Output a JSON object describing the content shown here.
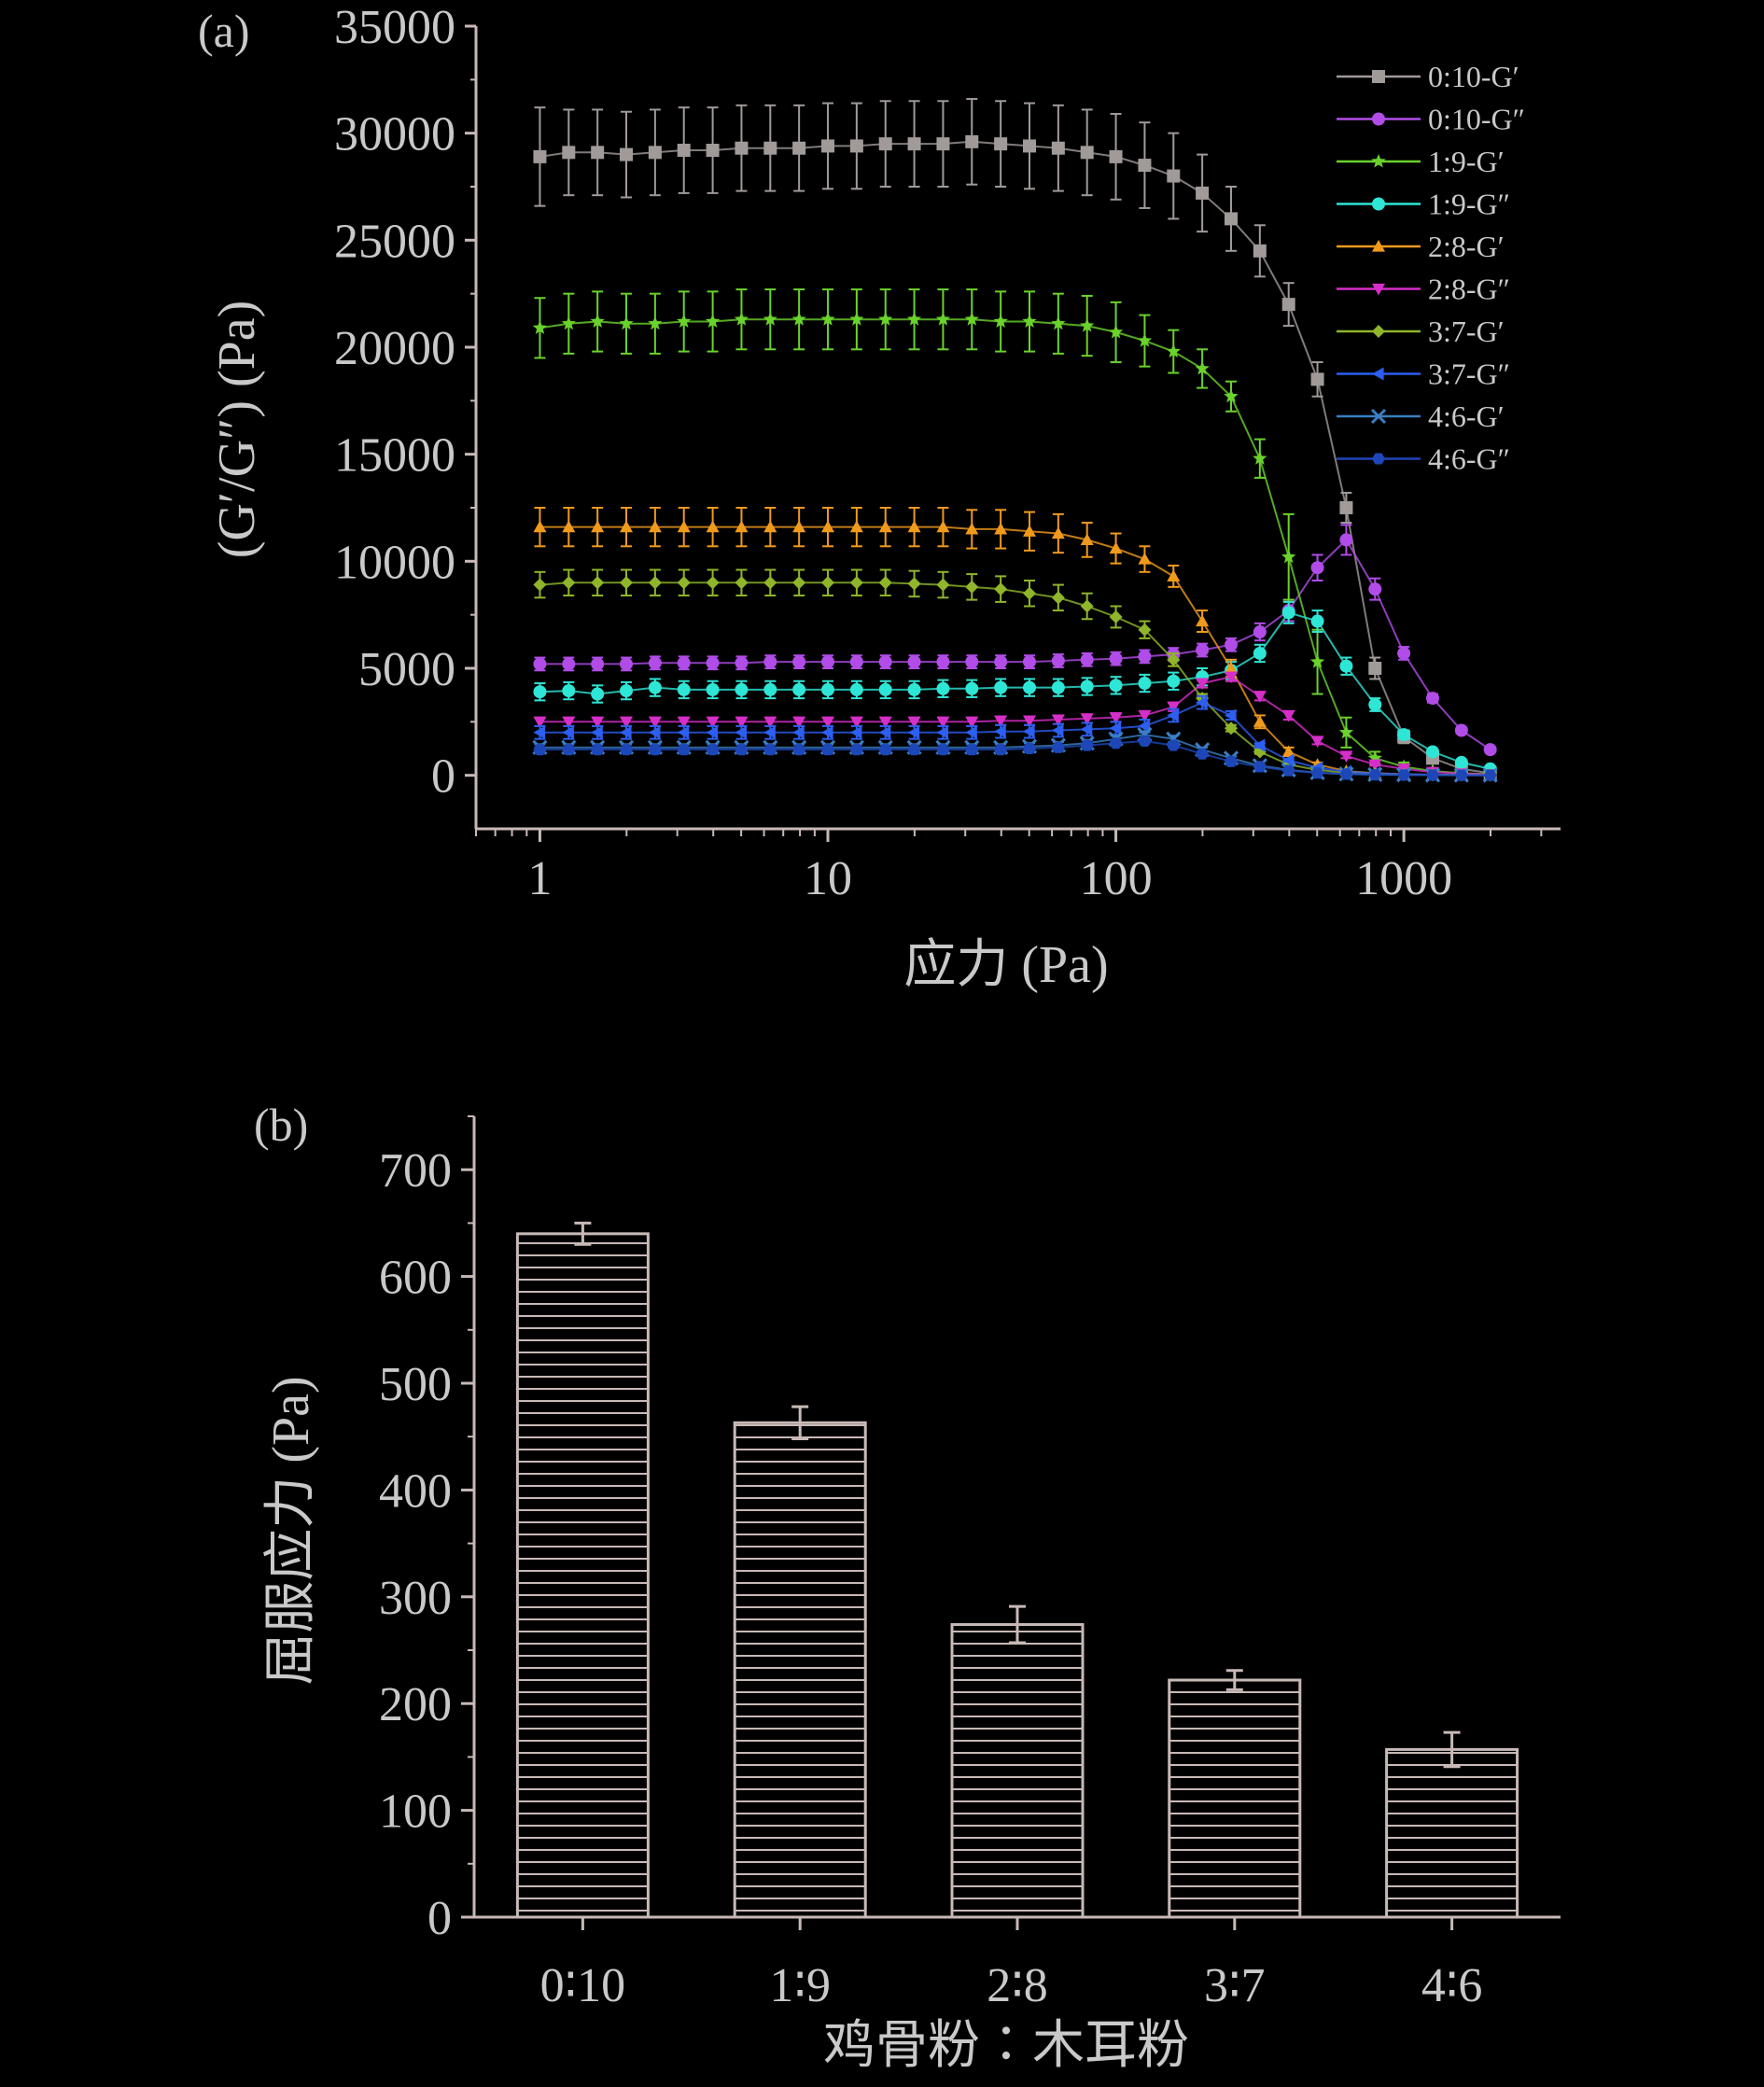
{
  "chart_data": [
    {
      "type": "line",
      "panel_label": "(a)",
      "xlabel": "应力 (Pa)",
      "ylabel": "(G′/G″) (Pa)",
      "xscale": "log",
      "xlim": [
        0.6,
        3500
      ],
      "ylim": [
        -2500,
        35000
      ],
      "xticks": [
        1,
        10,
        100,
        1000
      ],
      "xtick_labels": [
        "1",
        "10",
        "100",
        "1000"
      ],
      "yticks": [
        0,
        5000,
        10000,
        15000,
        20000,
        25000,
        30000,
        35000
      ],
      "ytick_labels": [
        "0",
        "5000",
        "10000",
        "15000",
        "20000",
        "25000",
        "30000",
        "35000"
      ],
      "legend_position": "top-right",
      "x": [
        1,
        1.259,
        1.585,
        1.995,
        2.512,
        3.162,
        3.981,
        5.012,
        6.31,
        7.943,
        10,
        12.59,
        15.85,
        19.95,
        25.12,
        31.62,
        39.81,
        50.12,
        63.1,
        79.43,
        100,
        125.9,
        158.5,
        199.5,
        251.2,
        316.2,
        398.1,
        501.2,
        631,
        794.3,
        1000,
        1259,
        1585,
        1995
      ],
      "series": [
        {
          "name": "0:10-G′",
          "color": "#a09a98",
          "marker": "square",
          "values": [
            28900,
            29100,
            29100,
            29000,
            29100,
            29200,
            29200,
            29300,
            29300,
            29300,
            29400,
            29400,
            29500,
            29500,
            29500,
            29600,
            29500,
            29400,
            29300,
            29100,
            28900,
            28500,
            28000,
            27200,
            26000,
            24500,
            22000,
            18500,
            12500,
            5000,
            1800,
            800,
            300,
            100
          ],
          "err": [
            2300,
            2000,
            2000,
            2000,
            2000,
            2000,
            2000,
            2000,
            2000,
            2000,
            2000,
            2000,
            2000,
            2000,
            2000,
            2000,
            2000,
            2000,
            2000,
            2000,
            2000,
            2000,
            2000,
            1800,
            1500,
            1200,
            1000,
            800,
            700,
            500,
            300,
            200,
            100,
            50
          ]
        },
        {
          "name": "0:10-G″",
          "color": "#b14ce8",
          "marker": "circle",
          "values": [
            5200,
            5200,
            5200,
            5200,
            5250,
            5250,
            5250,
            5250,
            5300,
            5300,
            5300,
            5300,
            5300,
            5300,
            5300,
            5300,
            5300,
            5300,
            5350,
            5400,
            5450,
            5550,
            5650,
            5850,
            6100,
            6700,
            7700,
            9700,
            11000,
            8700,
            5700,
            3600,
            2100,
            1200
          ],
          "err": [
            300,
            300,
            300,
            300,
            300,
            300,
            300,
            300,
            300,
            300,
            300,
            300,
            300,
            300,
            300,
            300,
            300,
            300,
            300,
            300,
            300,
            300,
            300,
            300,
            300,
            400,
            500,
            600,
            700,
            500,
            300,
            200,
            150,
            100
          ]
        },
        {
          "name": "1:9-G′",
          "color": "#6ad22c",
          "marker": "star",
          "values": [
            20900,
            21100,
            21200,
            21100,
            21100,
            21200,
            21200,
            21300,
            21300,
            21300,
            21300,
            21300,
            21300,
            21300,
            21300,
            21300,
            21200,
            21200,
            21100,
            21000,
            20700,
            20300,
            19800,
            19000,
            17700,
            14800,
            10200,
            5300,
            2000,
            800,
            400,
            200,
            100,
            50
          ],
          "err": [
            1400,
            1400,
            1400,
            1400,
            1400,
            1400,
            1400,
            1400,
            1400,
            1400,
            1400,
            1400,
            1400,
            1400,
            1400,
            1400,
            1400,
            1400,
            1400,
            1400,
            1400,
            1200,
            1000,
            900,
            700,
            900,
            2000,
            1500,
            700,
            300,
            200,
            100,
            50,
            50
          ]
        },
        {
          "name": "1:9-G″",
          "color": "#2ee6d6",
          "marker": "circle",
          "values": [
            3900,
            3950,
            3800,
            3950,
            4100,
            4000,
            4000,
            4000,
            4000,
            4000,
            4000,
            4000,
            4000,
            4000,
            4050,
            4050,
            4100,
            4100,
            4100,
            4150,
            4200,
            4300,
            4400,
            4600,
            4900,
            5700,
            7600,
            7200,
            5100,
            3300,
            1900,
            1100,
            600,
            300
          ],
          "err": [
            400,
            400,
            400,
            400,
            400,
            400,
            400,
            400,
            400,
            400,
            400,
            400,
            400,
            400,
            400,
            400,
            400,
            400,
            400,
            400,
            400,
            400,
            400,
            400,
            400,
            400,
            500,
            500,
            400,
            300,
            200,
            100,
            100,
            50
          ]
        },
        {
          "name": "2:8-G′",
          "color": "#f09a1c",
          "marker": "triangle-up",
          "values": [
            11600,
            11600,
            11600,
            11600,
            11600,
            11600,
            11600,
            11600,
            11600,
            11600,
            11600,
            11600,
            11600,
            11600,
            11600,
            11500,
            11500,
            11400,
            11300,
            11000,
            10600,
            10100,
            9300,
            7200,
            5000,
            2500,
            1100,
            500,
            200,
            100,
            50,
            30,
            20,
            10
          ],
          "err": [
            900,
            900,
            900,
            900,
            900,
            900,
            900,
            900,
            900,
            900,
            900,
            900,
            900,
            900,
            900,
            900,
            900,
            900,
            900,
            800,
            700,
            600,
            500,
            500,
            400,
            300,
            200,
            100,
            50,
            50,
            30,
            20,
            10,
            10
          ]
        },
        {
          "name": "2:8-G″",
          "color": "#d62ec8",
          "marker": "triangle-down",
          "values": [
            2500,
            2500,
            2500,
            2500,
            2500,
            2500,
            2500,
            2500,
            2500,
            2500,
            2500,
            2500,
            2500,
            2500,
            2500,
            2500,
            2550,
            2550,
            2600,
            2650,
            2700,
            2800,
            3200,
            4300,
            4600,
            3700,
            2800,
            1600,
            900,
            500,
            300,
            150,
            80,
            40
          ],
          "err": [
            200,
            200,
            200,
            200,
            200,
            200,
            200,
            200,
            200,
            200,
            200,
            200,
            200,
            200,
            200,
            200,
            200,
            200,
            200,
            200,
            200,
            200,
            200,
            200,
            200,
            200,
            200,
            150,
            100,
            50,
            50,
            30,
            20,
            10
          ]
        },
        {
          "name": "3:7-G′",
          "color": "#8fb52a",
          "marker": "diamond",
          "values": [
            8900,
            9000,
            9000,
            9000,
            9000,
            9000,
            9000,
            9000,
            9000,
            9000,
            9000,
            9000,
            9000,
            8950,
            8900,
            8800,
            8700,
            8500,
            8300,
            7900,
            7400,
            6800,
            5400,
            3600,
            2200,
            1100,
            500,
            250,
            120,
            60,
            30,
            20,
            10,
            5
          ],
          "err": [
            600,
            600,
            600,
            600,
            600,
            600,
            600,
            600,
            600,
            600,
            600,
            600,
            600,
            600,
            600,
            600,
            600,
            600,
            600,
            600,
            500,
            400,
            300,
            200,
            150,
            100,
            50,
            30,
            20,
            10,
            10,
            10,
            5,
            5
          ]
        },
        {
          "name": "3:7-G″",
          "color": "#2c5ef0",
          "marker": "triangle-left",
          "values": [
            2000,
            2000,
            2000,
            2000,
            2000,
            2000,
            2000,
            2000,
            2000,
            2000,
            2000,
            2000,
            2000,
            2000,
            2000,
            2000,
            2050,
            2050,
            2100,
            2150,
            2200,
            2300,
            2800,
            3400,
            2800,
            1400,
            700,
            350,
            170,
            90,
            50,
            25,
            15,
            8
          ],
          "err": [
            300,
            300,
            300,
            300,
            300,
            300,
            300,
            300,
            300,
            300,
            300,
            300,
            300,
            300,
            300,
            300,
            300,
            300,
            300,
            300,
            300,
            300,
            300,
            300,
            200,
            100,
            50,
            30,
            20,
            10,
            10,
            5,
            5,
            5
          ]
        },
        {
          "name": "4:6-G′",
          "color": "#3a7fc2",
          "marker": "x",
          "values": [
            1300,
            1300,
            1300,
            1300,
            1300,
            1300,
            1300,
            1300,
            1300,
            1300,
            1300,
            1300,
            1300,
            1300,
            1300,
            1300,
            1300,
            1350,
            1400,
            1500,
            1700,
            1900,
            1700,
            1200,
            800,
            450,
            250,
            120,
            60,
            30,
            20,
            10,
            5,
            5
          ],
          "err": [
            150,
            150,
            150,
            150,
            150,
            150,
            150,
            150,
            150,
            150,
            150,
            150,
            150,
            150,
            150,
            150,
            150,
            150,
            150,
            150,
            150,
            150,
            150,
            100,
            80,
            50,
            30,
            20,
            10,
            10,
            5,
            5,
            5,
            5
          ]
        },
        {
          "name": "4:6-G″",
          "color": "#1d46b8",
          "marker": "hexagon",
          "values": [
            1200,
            1200,
            1200,
            1200,
            1200,
            1200,
            1200,
            1200,
            1200,
            1200,
            1200,
            1200,
            1200,
            1200,
            1200,
            1200,
            1200,
            1250,
            1300,
            1400,
            1500,
            1600,
            1400,
            1000,
            650,
            400,
            220,
            110,
            55,
            28,
            15,
            8,
            5,
            3
          ],
          "err": [
            120,
            120,
            120,
            120,
            120,
            120,
            120,
            120,
            120,
            120,
            120,
            120,
            120,
            120,
            120,
            120,
            120,
            120,
            120,
            120,
            120,
            120,
            120,
            100,
            80,
            50,
            30,
            20,
            10,
            10,
            5,
            5,
            5,
            5
          ]
        }
      ]
    },
    {
      "type": "bar",
      "panel_label": "(b)",
      "xlabel": "鸡骨粉∶木耳粉",
      "ylabel": "屈服应力 (Pa)",
      "categories": [
        "0∶10",
        "1∶9",
        "2∶8",
        "3∶7",
        "4∶6"
      ],
      "values": [
        640,
        463,
        274,
        222,
        157
      ],
      "errors": [
        10,
        15,
        17,
        9,
        16
      ],
      "ylim": [
        0,
        750
      ],
      "yticks": [
        0,
        100,
        200,
        300,
        400,
        500,
        600,
        700
      ],
      "ytick_labels": [
        "0",
        "100",
        "200",
        "300",
        "400",
        "500",
        "600",
        "700"
      ],
      "bar_color": "#c8b9b6",
      "hatch": "horizontal lines"
    }
  ]
}
